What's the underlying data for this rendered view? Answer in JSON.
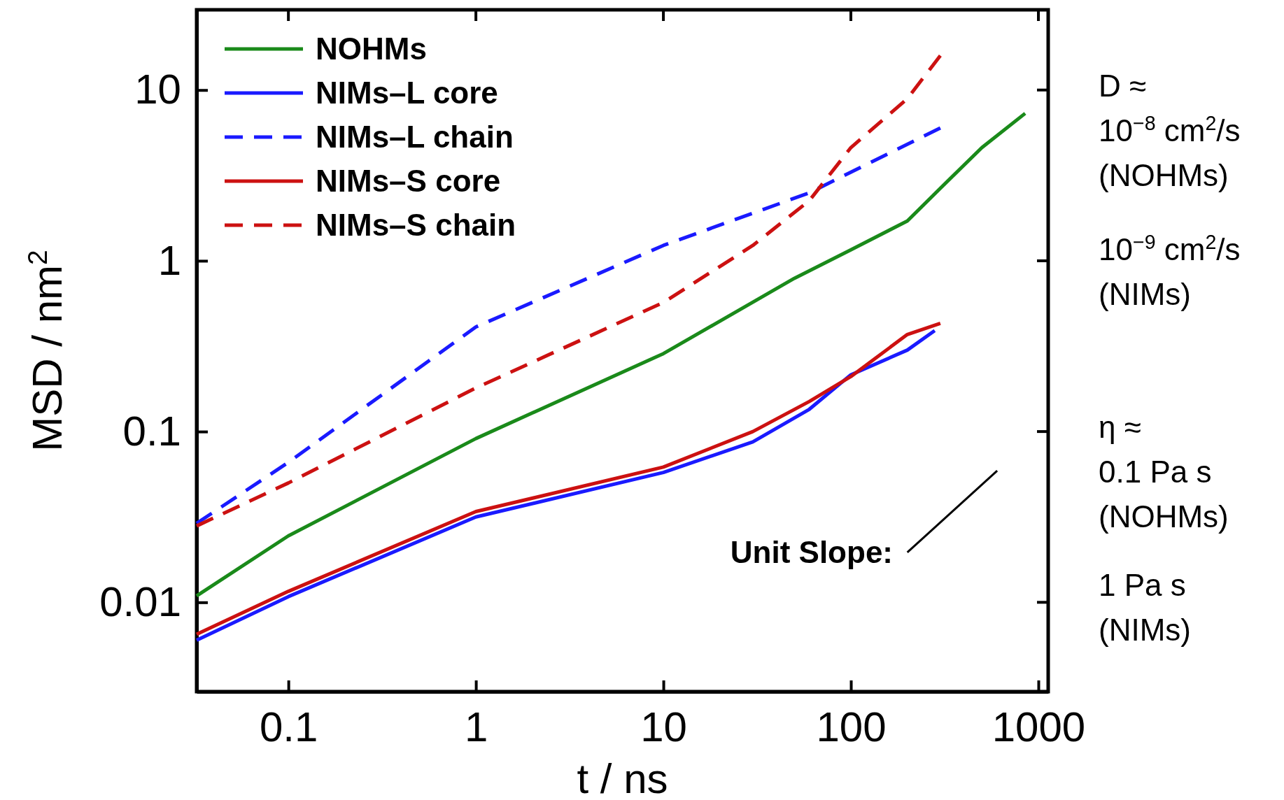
{
  "chart_data": {
    "type": "line",
    "xlabel": "t / ns",
    "ylabel": "MSD / nm$^{2}$",
    "log": "xy",
    "xlim": [
      0.0324,
      1128
    ],
    "ylim": [
      0.003,
      29.5
    ],
    "xticks": [
      0.1,
      1,
      10,
      100,
      1000
    ],
    "yticks": [
      0.01,
      0.1,
      1,
      10
    ],
    "grid": false,
    "legend": "top left",
    "line_style": "solid",
    "marker": "none",
    "series": [
      {
        "name": "NOHMs",
        "color": "#1a8a1a",
        "x": [
          0.0324,
          0.1,
          1,
          10,
          50,
          100,
          200,
          300,
          500,
          850
        ],
        "values": [
          0.0109,
          0.0245,
          0.091,
          0.286,
          0.79,
          1.16,
          1.71,
          2.66,
          4.6,
          7.3
        ]
      },
      {
        "name": "NIMs–L core",
        "color": "#1a1aff",
        "x": [
          0.0324,
          0.1,
          1,
          10,
          30,
          60,
          100,
          200,
          280
        ],
        "values": [
          0.006,
          0.0108,
          0.0316,
          0.0576,
          0.087,
          0.135,
          0.215,
          0.3,
          0.39
        ]
      },
      {
        "name": "NIMs–L chain",
        "color": "#1a1aff",
        "line_style": "dashed",
        "x": [
          0.0324,
          0.1,
          1,
          10,
          60,
          300
        ],
        "values": [
          0.029,
          0.066,
          0.41,
          1.23,
          2.5,
          6.0
        ]
      },
      {
        "name": "NIMs–S core",
        "color": "#cc1111",
        "x": [
          0.0324,
          0.1,
          1,
          10,
          30,
          60,
          100,
          200,
          300
        ],
        "values": [
          0.0065,
          0.0116,
          0.034,
          0.062,
          0.1,
          0.15,
          0.21,
          0.37,
          0.43
        ]
      },
      {
        "name": "NIMs–S chain",
        "color": "#cc1111",
        "line_style": "dashed",
        "x": [
          0.0324,
          0.1,
          1,
          10,
          30,
          60,
          100,
          200,
          300
        ],
        "values": [
          0.028,
          0.05,
          0.18,
          0.57,
          1.23,
          2.25,
          4.6,
          8.9,
          15.9
        ]
      },
      {
        "color": "#000000",
        "x": [
          200,
          603
        ],
        "values": [
          0.0196,
          0.059
        ]
      }
    ],
    "annotations": [
      "Unit Slope:",
      "D ≈\n10$^{−8}$ cm$^{2}$/s\n(NOHMs)",
      "10$^{−9}$ cm$^{2}$/s\n(NIMs)",
      "η ≈\n0.1 Pa s\n(NOHMs)",
      "1 Pa s\n(NIMs)"
    ]
  }
}
